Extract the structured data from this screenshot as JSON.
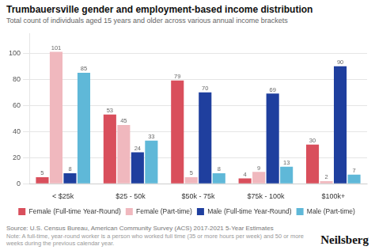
{
  "chart_data": {
    "type": "bar",
    "title": "Trumbauersville gender and employment-based income distribution",
    "subtitle": "Total count of individuals aged 15 years and older across various annual income brackets",
    "categories": [
      "< $25k",
      "$25 - 50k",
      "$50k - 75k",
      "$75k - 100k",
      "$100k+"
    ],
    "series": [
      {
        "name": "Female (Full-time Year-Round)",
        "color": "#d94f5c",
        "values": [
          5,
          53,
          79,
          4,
          30
        ]
      },
      {
        "name": "Female (Part-time)",
        "color": "#f0b8be",
        "values": [
          101,
          45,
          5,
          9,
          2
        ]
      },
      {
        "name": "Male (Full-time Year-Round)",
        "color": "#1f3f9e",
        "values": [
          8,
          24,
          70,
          69,
          90
        ]
      },
      {
        "name": "Male (Part-time)",
        "color": "#5fb8d8",
        "values": [
          85,
          33,
          8,
          13,
          7
        ]
      }
    ],
    "ylim": [
      0,
      115
    ],
    "yticks": [
      0,
      20,
      40,
      60,
      80,
      100
    ],
    "grid": true,
    "legend": "bottom",
    "data_labels": true,
    "annotations": [
      "Source: U.S. Census Bureau, American Community Survey (ACS) 2017-2021 5-Year Estimates",
      "Note: A full-time, year-round worker is a person who worked full time (35 or more hours per week) and 50 or more weeks during the previous calendar year.",
      "Neilsberg"
    ]
  }
}
